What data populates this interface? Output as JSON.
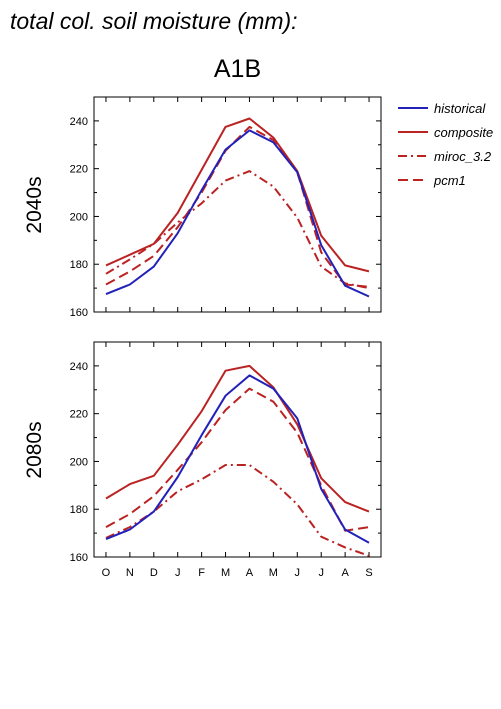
{
  "title": "total col. soil moisture (mm):",
  "colors": {
    "historical": "#2222bb",
    "scenario": "#bb2222"
  },
  "chart_data": {
    "type": "line",
    "scenario": "A1B",
    "categories": [
      "O",
      "N",
      "D",
      "J",
      "F",
      "M",
      "A",
      "M",
      "J",
      "J",
      "A",
      "S"
    ],
    "ylim": [
      160,
      250
    ],
    "yticks": [
      160,
      180,
      200,
      220,
      240
    ],
    "legend_position": "right",
    "legend": [
      {
        "name": "historical",
        "color": "#2222bb",
        "dash": "solid"
      },
      {
        "name": "composite",
        "color": "#bb2222",
        "dash": "solid"
      },
      {
        "name": "miroc_3.2",
        "color": "#bb2222",
        "dash": "dashdot"
      },
      {
        "name": "pcm1",
        "color": "#bb2222",
        "dash": "dashed"
      }
    ],
    "panels": [
      {
        "label": "2040s",
        "series": [
          {
            "name": "historical",
            "values": [
              167.5,
              171.5,
              179,
              193,
              211,
              228,
              236,
              231,
              218.5,
              188,
              171,
              166.5
            ]
          },
          {
            "name": "composite",
            "values": [
              179.5,
              184,
              188.5,
              201.5,
              219.5,
              237.5,
              241,
              233,
              219,
              192,
              179.5,
              177
            ]
          },
          {
            "name": "miroc_3.2",
            "values": [
              176,
              182,
              188.5,
              197.5,
              205.5,
              215,
              219,
              212.5,
              199.5,
              179,
              172,
              170
            ]
          },
          {
            "name": "pcm1",
            "values": [
              171.5,
              177,
              183.5,
              195.5,
              210,
              227.5,
              237.5,
              232,
              218.5,
              185,
              171.5,
              170.5
            ]
          }
        ]
      },
      {
        "label": "2080s",
        "series": [
          {
            "name": "historical",
            "values": [
              167.5,
              171.5,
              179,
              193.5,
              211,
              227.5,
              236,
              230.5,
              218,
              188.5,
              171.5,
              166
            ]
          },
          {
            "name": "composite",
            "values": [
              184.5,
              190.5,
              194,
              207,
              221,
              238,
              240,
              231,
              215.5,
              193,
              183,
              179
            ]
          },
          {
            "name": "miroc_3.2",
            "values": [
              168,
              172.5,
              179,
              187.5,
              192.5,
              198.5,
              198.5,
              191.5,
              182,
              168.5,
              164,
              160.5
            ]
          },
          {
            "name": "pcm1",
            "values": [
              172.5,
              178,
              185.5,
              196.5,
              208,
              221.5,
              230.5,
              225,
              212,
              190,
              171,
              172.5
            ]
          }
        ]
      }
    ]
  }
}
